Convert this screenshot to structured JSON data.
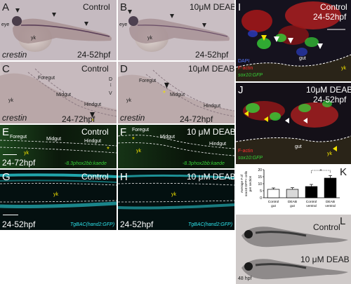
{
  "colors": {
    "brightfield": "#c7bcc2",
    "fluor_bg": "#040804",
    "gfp": "#37d137",
    "cyan": "#2ee6ee",
    "yellow": "#f2e200",
    "red": "#ff3030"
  },
  "panels": {
    "A": {
      "letter": "A",
      "condition": "Control",
      "eye": "eye",
      "yk": "yk",
      "probe": "crestin",
      "stage": "24-52hpf"
    },
    "B": {
      "letter": "B",
      "condition": "10μM DEAB",
      "eye": "eye",
      "yk": "yk",
      "stage": "24-52hpf"
    },
    "C": {
      "letter": "C",
      "condition": "Control",
      "foregut": "Foregut",
      "midgut": "Midgut",
      "hindgut": "Hindgut",
      "yk": "yk",
      "probe": "crestin",
      "stage": "24-72hpf",
      "axis_d": "D",
      "axis_v": "V"
    },
    "D": {
      "letter": "D",
      "condition": "10μM DEAB",
      "foregut": "Foregut",
      "midgut": "Midgut",
      "hindgut": "Hindgut",
      "yk": "yk",
      "probe": "crestin",
      "stage": "24-72hpf"
    },
    "E": {
      "letter": "E",
      "condition": "Control",
      "foregut": "Foregut",
      "midgut": "Midgut",
      "hindgut": "Hindgut",
      "yk": "yk",
      "stage": "24-72hpf",
      "transgene": "-8.3phox2bb:kaede"
    },
    "F": {
      "letter": "F",
      "condition": "10 μM DEAB",
      "foregut": "Foregut",
      "midgut": "Midgut",
      "hindgut": "Hindgut",
      "yk": "yk",
      "transgene": "-8.3phox2bb:kaede"
    },
    "G": {
      "letter": "G",
      "condition": "Control",
      "yk": "yk",
      "stage": "24-52hpf",
      "transgene": "TgBAC(hand2:GFP)"
    },
    "H": {
      "letter": "H",
      "condition": "10 μM DEAB",
      "yk": "yk",
      "stage": "24-52hpf",
      "transgene": "TgBAC(hand2:GFP)"
    },
    "I": {
      "letter": "I",
      "condition": "Control",
      "stage": "24-52hpf",
      "gut": "gut",
      "yk": "yk",
      "stain1": "DAPI",
      "stain2": "F-actin",
      "stain3": "sox10:GFP"
    },
    "J": {
      "letter": "J",
      "condition": "10μM DEAB",
      "stage": "24-52hpf",
      "gut": "gut",
      "yk": "yk",
      "stain2": "F-actin",
      "stain3": "sox10:GFP"
    },
    "L": {
      "letter": "L",
      "condition_top": "Control",
      "condition_bottom": "10 μM DEAB",
      "stage": "48 hpf"
    }
  },
  "chart_data": {
    "type": "bar",
    "panel_letter": "K",
    "categories": [
      "Control gut",
      "DEAB gut",
      "Control ventral",
      "DEAB ventral"
    ],
    "category_lines": [
      [
        "Control",
        "gut"
      ],
      [
        "DEAB",
        "gut"
      ],
      [
        "Control",
        "ventral"
      ],
      [
        "DEAB",
        "ventral"
      ]
    ],
    "values": [
      6.0,
      6.0,
      8.0,
      14.0
    ],
    "errors": [
      1.0,
      1.2,
      1.5,
      1.8
    ],
    "bar_colors": [
      "#ffffff",
      "#d9d9d9",
      "#000000",
      "#000000"
    ],
    "ylabel_lines": [
      "Average # of",
      "sox10:GFP+ cells",
      "per section"
    ],
    "yticks": [
      0,
      5,
      10,
      15,
      20
    ],
    "ylim": [
      0,
      20
    ],
    "significance": "*"
  }
}
